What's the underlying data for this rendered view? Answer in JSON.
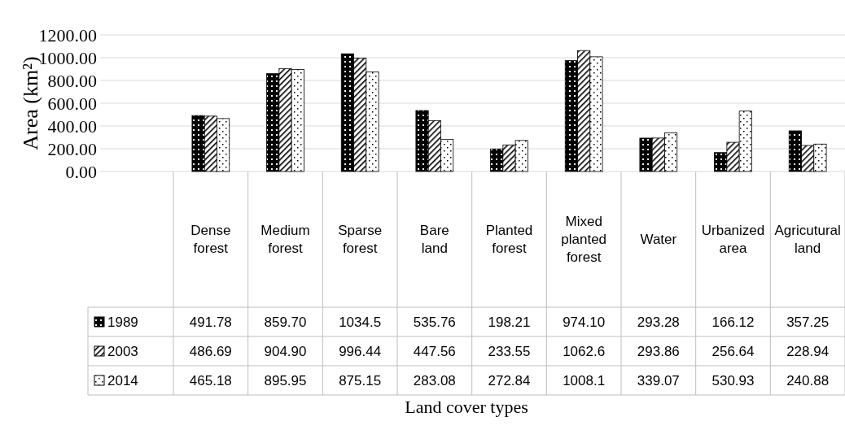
{
  "chart_data": {
    "type": "bar",
    "annotations": [
      "Land cover types"
    ],
    "ylabel": "Area (km²)",
    "categories": [
      "Dense forest",
      "Medium forest",
      "Sparse forest",
      "Bare land",
      "Planted forest",
      "Mixed planted forest",
      "Water",
      "Urbanized area",
      "Agricutural land"
    ],
    "series": [
      {
        "name": "1989",
        "color": "#000000",
        "values": [
          491.78,
          859.7,
          1034.5,
          535.76,
          198.21,
          974.1,
          293.28,
          166.12,
          357.25
        ],
        "value_labels": [
          "491.78",
          "859.70",
          "1034.5",
          "535.76",
          "198.21",
          "974.10",
          "293.28",
          "166.12",
          "357.25"
        ]
      },
      {
        "name": "2003",
        "color": "#000000",
        "values": [
          486.69,
          904.9,
          996.44,
          447.56,
          233.55,
          1062.6,
          293.86,
          256.64,
          228.94
        ],
        "value_labels": [
          "486.69",
          "904.90",
          "996.44",
          "447.56",
          "233.55",
          "1062.6",
          "293.86",
          "256.64",
          "228.94"
        ]
      },
      {
        "name": "2014",
        "color": "#000000",
        "values": [
          465.18,
          895.95,
          875.15,
          283.08,
          272.84,
          1008.1,
          339.07,
          530.93,
          240.88
        ],
        "value_labels": [
          "465.18",
          "895.95",
          "875.15",
          "283.08",
          "272.84",
          "1008.1",
          "339.07",
          "530.93",
          "240.88"
        ]
      }
    ],
    "ylim": [
      0,
      1200
    ],
    "yticks": [
      {
        "value": 0,
        "label": "0.00"
      },
      {
        "value": 200,
        "label": "200.00"
      },
      {
        "value": 400,
        "label": "400.00"
      },
      {
        "value": 600,
        "label": "600.00"
      },
      {
        "value": 800,
        "label": "800.00"
      },
      {
        "value": 1000,
        "label": "1000.00"
      },
      {
        "value": 1200,
        "label": "1200.00"
      }
    ],
    "grid": "y",
    "legend": "bottom left"
  }
}
